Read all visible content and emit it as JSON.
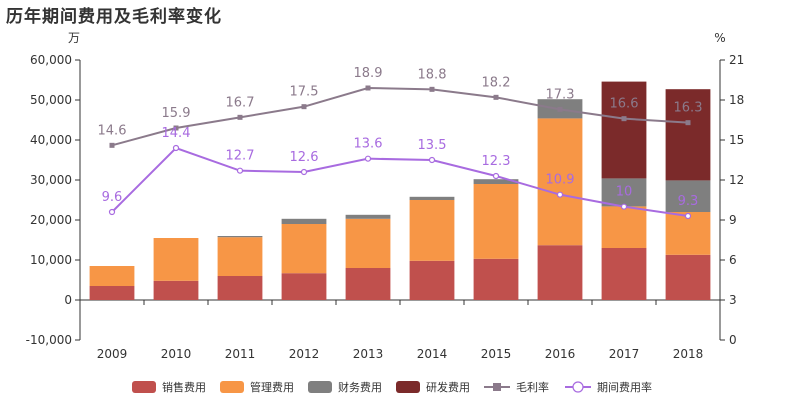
{
  "chart_data": {
    "type": "bar",
    "stacked": true,
    "title": "历年期间费用及毛利率变化",
    "y_left_unit": "万",
    "y_right_unit": "%",
    "y_left_lim": [
      -10000,
      60000
    ],
    "y_left_ticks": [
      -10000,
      0,
      10000,
      20000,
      30000,
      40000,
      50000,
      60000
    ],
    "y_right_lim": [
      0,
      21
    ],
    "y_right_ticks": [
      0,
      3,
      6,
      9,
      12,
      15,
      18,
      21
    ],
    "categories": [
      "2009",
      "2010",
      "2011",
      "2012",
      "2013",
      "2014",
      "2015",
      "2016",
      "2017",
      "2018"
    ],
    "series": [
      {
        "name": "销售费用",
        "type": "bar",
        "axis": "left",
        "color": "#c0504d",
        "values": [
          3500,
          4800,
          6000,
          6700,
          8000,
          9800,
          10300,
          13700,
          13000,
          11300
        ]
      },
      {
        "name": "管理费用",
        "type": "bar",
        "axis": "left",
        "color": "#f79646",
        "values": [
          5000,
          10700,
          9700,
          12300,
          12300,
          15200,
          18700,
          31700,
          10400,
          10700
        ]
      },
      {
        "name": "财务费用",
        "type": "bar",
        "axis": "left",
        "color": "#7f7f7f",
        "values": [
          0,
          0,
          300,
          1300,
          1000,
          800,
          1200,
          4800,
          7000,
          7900
        ]
      },
      {
        "name": "研发费用",
        "type": "bar",
        "axis": "left",
        "color": "#7b2a2a",
        "values": [
          0,
          0,
          0,
          0,
          0,
          0,
          0,
          0,
          24200,
          22800
        ]
      },
      {
        "name": "毛利率",
        "type": "line",
        "axis": "right",
        "color": "#8b7a8b",
        "marker": "square",
        "values": [
          14.6,
          15.9,
          16.7,
          17.5,
          18.9,
          18.8,
          18.2,
          17.3,
          16.6,
          16.3
        ]
      },
      {
        "name": "期间费用率",
        "type": "line",
        "axis": "right",
        "color": "#a86be0",
        "marker": "circle",
        "values": [
          9.6,
          14.4,
          12.7,
          12.6,
          13.6,
          13.5,
          12.3,
          10.9,
          10,
          9.3
        ]
      }
    ],
    "legend_position": "bottom",
    "grid": false
  }
}
